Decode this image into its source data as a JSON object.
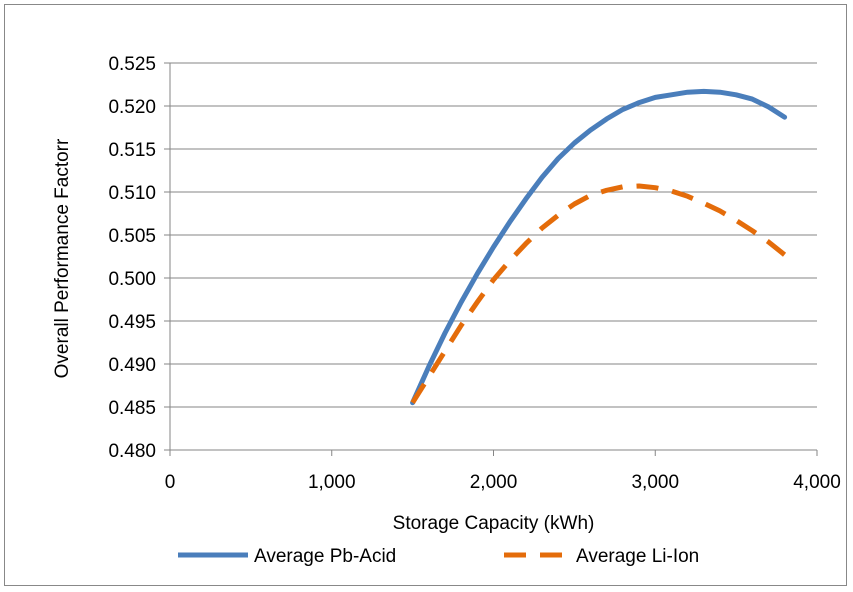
{
  "chart_data": {
    "type": "line",
    "title": "",
    "xlabel": "Storage Capacity (kWh)",
    "ylabel": "Overall Performance Factorr",
    "xlim": [
      0,
      4000
    ],
    "ylim": [
      0.48,
      0.525
    ],
    "x_ticks": [
      0,
      1000,
      2000,
      3000,
      4000
    ],
    "x_tick_labels": [
      "0",
      "1,000",
      "2,000",
      "3,000",
      "4,000"
    ],
    "y_ticks": [
      0.48,
      0.485,
      0.49,
      0.495,
      0.5,
      0.505,
      0.51,
      0.515,
      0.52,
      0.525
    ],
    "y_tick_labels": [
      "0.480",
      "0.485",
      "0.490",
      "0.495",
      "0.500",
      "0.505",
      "0.510",
      "0.515",
      "0.520",
      "0.525"
    ],
    "grid": "horizontal",
    "legend_position": "bottom",
    "series": [
      {
        "name": "Average Pb-Acid",
        "color": "#4a7ebb",
        "style": "solid",
        "x": [
          1500,
          1600,
          1700,
          1800,
          1900,
          2000,
          2100,
          2200,
          2300,
          2400,
          2500,
          2600,
          2700,
          2800,
          2900,
          3000,
          3100,
          3200,
          3300,
          3400,
          3500,
          3600,
          3700,
          3800
        ],
        "y": [
          0.4855,
          0.4897,
          0.4936,
          0.4972,
          0.5005,
          0.5036,
          0.5065,
          0.5092,
          0.5117,
          0.5139,
          0.5157,
          0.5172,
          0.5185,
          0.5196,
          0.5204,
          0.521,
          0.5213,
          0.5216,
          0.5217,
          0.5216,
          0.5213,
          0.5208,
          0.5199,
          0.5187
        ]
      },
      {
        "name": "Average Li-Ion",
        "color": "#e46c0a",
        "style": "dashed",
        "x": [
          1500,
          1600,
          1700,
          1800,
          1900,
          2000,
          2100,
          2200,
          2300,
          2400,
          2500,
          2600,
          2700,
          2800,
          2900,
          3000,
          3100,
          3200,
          3300,
          3400,
          3500,
          3600,
          3700,
          3800
        ],
        "y": [
          0.4855,
          0.4885,
          0.4915,
          0.4945,
          0.4972,
          0.4998,
          0.502,
          0.504,
          0.5058,
          0.5073,
          0.5086,
          0.5096,
          0.5102,
          0.5106,
          0.5107,
          0.5105,
          0.5101,
          0.5095,
          0.5087,
          0.5078,
          0.5067,
          0.5055,
          0.5042,
          0.5027
        ]
      }
    ]
  }
}
